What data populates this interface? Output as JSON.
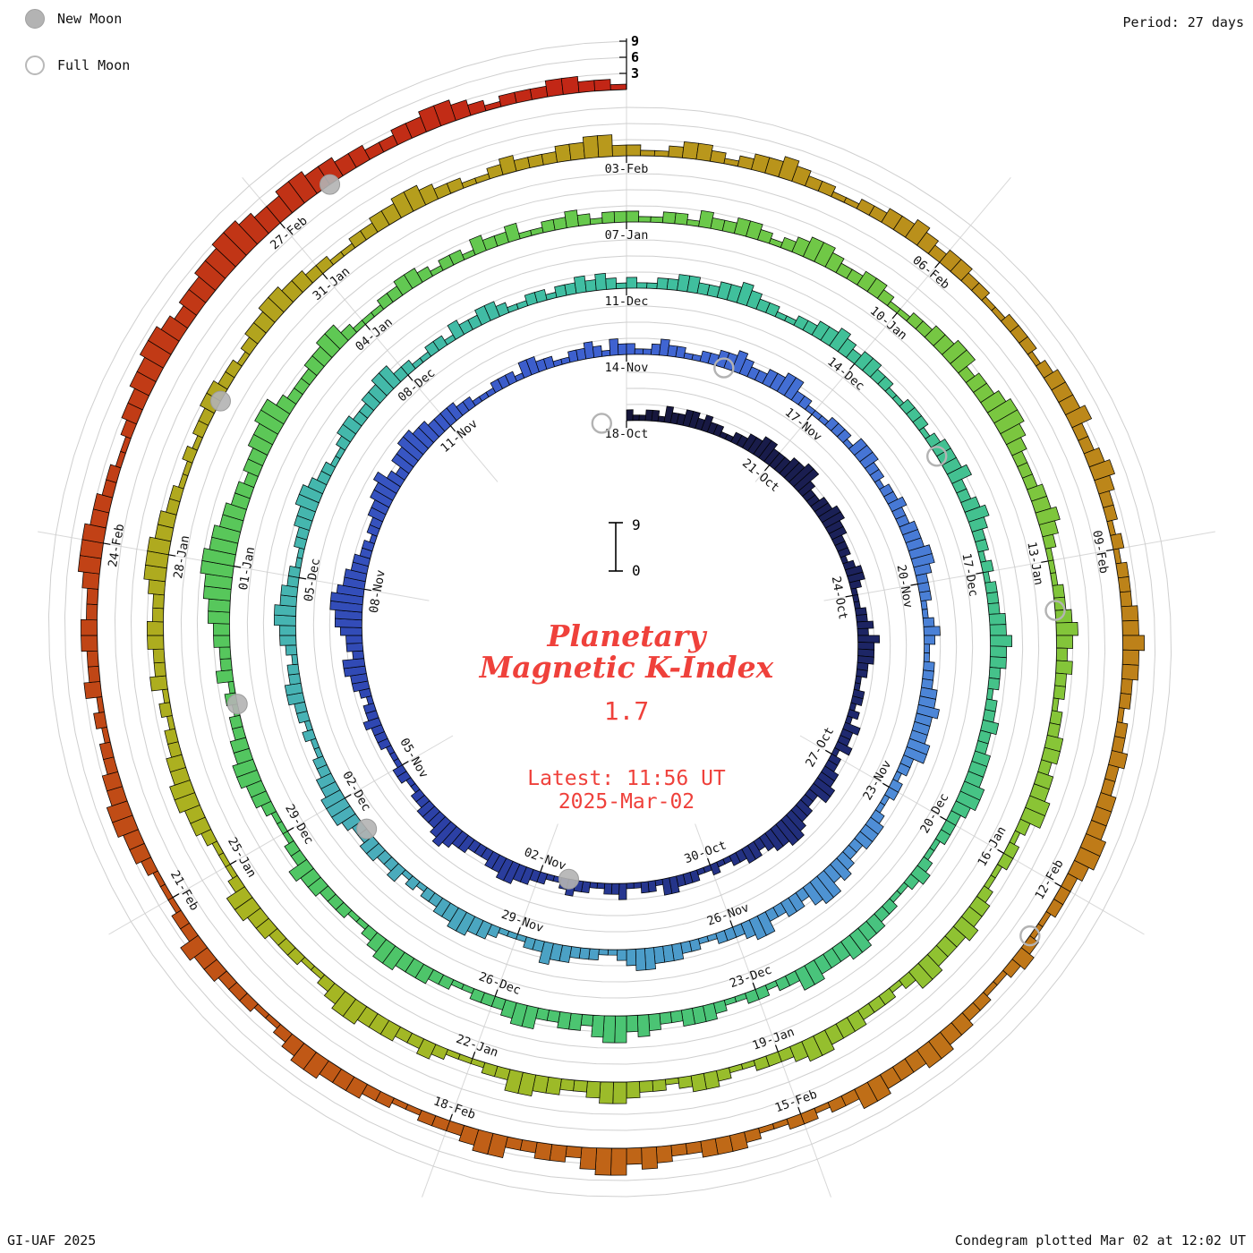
{
  "header": {
    "period": "Period: 27 days"
  },
  "legend": {
    "new_moon": "New Moon",
    "full_moon": "Full Moon"
  },
  "footer": {
    "left": "GI-UAF 2025",
    "right": "Condegram plotted Mar 02 at 12:02 UT"
  },
  "center": {
    "title_line1": "Planetary",
    "title_line2": "Magnetic K-Index",
    "current_value": "1.7",
    "latest_time": "Latest: 11:56 UT",
    "latest_date": "2025-Mar-02",
    "scale_top": "9",
    "scale_bottom": "0"
  },
  "chart_data": {
    "type": "bar",
    "variant": "spiral-condegram",
    "title": "Planetary Magnetic K-Index",
    "period_days": 27,
    "samples_per_day": 8,
    "sample_interval_hours": 3,
    "start_date": "2024-10-18",
    "end_date": "2025-03-02",
    "current_k": 1.7,
    "kmax": 9,
    "r_axis_ticks": [
      3,
      6,
      9
    ],
    "grid": true,
    "color_anchors": [
      "#16163a",
      "#1f2a72",
      "#2e44ae",
      "#3f63d2",
      "#4f8cd8",
      "#49b0b8",
      "#3fbfa0",
      "#46c384",
      "#50c662",
      "#68c94c",
      "#8cc434",
      "#aab320",
      "#b8991c",
      "#bf7a18",
      "#c05016",
      "#c22516"
    ],
    "rings": [
      {
        "start_label": "18-Oct",
        "tick_labels": [
          "18-Oct",
          "21-Oct",
          "24-Oct",
          "27-Oct",
          "30-Oct",
          "02-Nov",
          "05-Nov",
          "08-Nov",
          "11-Nov"
        ],
        "k_values_by_day": [
          "21122132",
          "23323221",
          "12233443",
          "33445532",
          "23344332",
          "22123321",
          "11223243",
          "33221122",
          "12132231",
          "22334422",
          "33455443",
          "23322112",
          "11222331",
          "22113221",
          "12232112",
          "23344332",
          "22334543",
          "33221122",
          "11122232",
          "21233442",
          "33455665",
          "44332212",
          "23344532",
          "44554433",
          "33221112",
          "22133221",
          "12232132"
        ]
      },
      {
        "start_label": "14-Nov",
        "tick_labels": [
          "14-Nov",
          "17-Nov",
          "20-Nov",
          "23-Nov",
          "26-Nov",
          "29-Nov",
          "02-Dec",
          "05-Dec",
          "08-Dec"
        ],
        "k_values_by_day": [
          "21123221",
          "12233432",
          "23344221",
          "11222133",
          "32212232",
          "23334432",
          "22112321",
          "12223343",
          "33442212",
          "21123332",
          "23435542",
          "33224432",
          "22112233",
          "34432112",
          "22334221",
          "11233443",
          "32212132",
          "23322344",
          "43322112",
          "12233221",
          "23344332",
          "21122334",
          "43221123",
          "32233442",
          "21122132",
          "23321122",
          "12232321"
        ]
      },
      {
        "start_label": "11-Dec",
        "tick_labels": [
          "11-Dec",
          "14-Dec",
          "17-Dec",
          "20-Dec",
          "23-Dec",
          "26-Dec",
          "29-Dec",
          "01-Jan",
          "04-Jan"
        ],
        "k_values_by_day": [
          "21122332",
          "23343221",
          "12233432",
          "33221122",
          "21233342",
          "23432212",
          "12223343",
          "32212232",
          "23334432",
          "22112321",
          "12233443",
          "33442212",
          "21123332",
          "23435542",
          "33224432",
          "22112233",
          "34432112",
          "22334221",
          "11233443",
          "32212132",
          "23344556",
          "65544332",
          "33445532",
          "22334421",
          "11223321",
          "22132231",
          "12232122"
        ]
      },
      {
        "start_label": "07-Jan",
        "tick_labels": [
          "07-Jan",
          "10-Jan",
          "13-Jan",
          "16-Jan",
          "19-Jan",
          "22-Jan",
          "25-Jan",
          "28-Jan",
          "31-Jan"
        ],
        "k_values_by_day": [
          "21122132",
          "23321234",
          "43223321",
          "12233442",
          "33455432",
          "22334321",
          "11223432",
          "32212233",
          "23344212",
          "21123343",
          "33442122",
          "23334432",
          "22112332",
          "12234432",
          "23344221",
          "11232233",
          "34432112",
          "22334421",
          "11233443",
          "32212132",
          "23322344",
          "43322112",
          "12233221",
          "23344332",
          "21122334",
          "43221123",
          "22233442"
        ]
      },
      {
        "start_label": "03-Feb",
        "tick_labels": [
          "03-Feb",
          "06-Feb",
          "09-Feb",
          "12-Feb",
          "15-Feb",
          "18-Feb",
          "21-Feb",
          "24-Feb",
          "27-Feb"
        ],
        "k_values_by_day": [
          "21123321",
          "23343221",
          "12233432",
          "33221122",
          "21233342",
          "23432212",
          "12223343",
          "32212232",
          "23334432",
          "22112321",
          "12233443",
          "33442212",
          "21123332",
          "23435542",
          "33224432",
          "22112233",
          "34432112",
          "22334221",
          "11233443",
          "32212132",
          "23322344",
          "43322112",
          "33445543",
          "44556654",
          "45544332",
          "23344321",
          "22233221"
        ]
      }
    ],
    "moons": [
      {
        "type": "full",
        "date": "17-Oct",
        "day": -0.5
      },
      {
        "type": "new",
        "date": "01-Nov",
        "day": 14.5
      },
      {
        "type": "full",
        "date": "15-Nov",
        "day": 28.5
      },
      {
        "type": "new",
        "date": "01-Dec",
        "day": 44.5
      },
      {
        "type": "full",
        "date": "15-Dec",
        "day": 58.5
      },
      {
        "type": "new",
        "date": "30-Dec",
        "day": 73.5
      },
      {
        "type": "full",
        "date": "13-Jan",
        "day": 87.5
      },
      {
        "type": "new",
        "date": "29-Jan",
        "day": 103.5
      },
      {
        "type": "full",
        "date": "12-Feb",
        "day": 117.5
      },
      {
        "type": "new",
        "date": "27-Feb",
        "day": 132.5
      }
    ],
    "annotation_color": "#ef413b",
    "moon_marker_color": "#b3b3b3"
  }
}
